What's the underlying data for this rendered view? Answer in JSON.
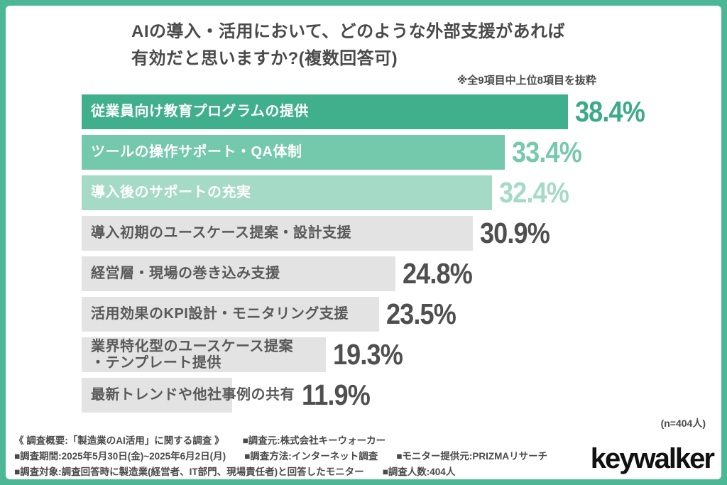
{
  "page": {
    "frame_color": "#4CB795",
    "background": "#ffffff"
  },
  "header": {
    "title_line1": "AIの導入・活用において、どのような外部支援があれば",
    "title_line2": "有効だと思いますか?(複数回答可)",
    "note": "※全9項目中上位8項目を抜粋"
  },
  "chart_data": {
    "type": "bar",
    "orientation": "horizontal",
    "unit": "%",
    "xlim": [
      0,
      40
    ],
    "title": "AIの導入・活用において、どのような外部支援があれば有効だと思いますか?(複数回答可)",
    "categories": [
      "従業員向け教育プログラムの提供",
      "ツールの操作サポート・QA体制",
      "導入後のサポートの充実",
      "導入初期のユースケース提案・設計支援",
      "経営層・現場の巻き込み支援",
      "活用効果のKPI設計・モニタリング支援",
      "業界特化型のユースケース提案\n・テンプレート提供",
      "最新トレンドや他社事例の共有"
    ],
    "values": [
      38.4,
      33.4,
      32.4,
      30.9,
      24.8,
      23.5,
      19.3,
      11.9
    ],
    "value_labels": [
      "38.4%",
      "33.4%",
      "32.4%",
      "30.9%",
      "24.8%",
      "23.5%",
      "19.3%",
      "11.9%"
    ],
    "bar_colors": [
      "#40AF8C",
      "#74C8AC",
      "#A4DAC6",
      "#E3E3E3",
      "#E3E3E3",
      "#E3E3E3",
      "#E3E3E3",
      "#E3E3E3"
    ],
    "label_text_colors": [
      "#ffffff",
      "#ffffff",
      "#ffffff",
      "#595959",
      "#595959",
      "#595959",
      "#595959",
      "#595959"
    ],
    "value_label_colors": [
      "#3BAA88",
      "#76C9AE",
      "#A5DAC7",
      "#4f4f4f",
      "#4f4f4f",
      "#4f4f4f",
      "#4f4f4f",
      "#4f4f4f"
    ],
    "legend": null,
    "grid": false
  },
  "footer": {
    "sample_size": "(n=404人)",
    "survey_lines": [
      [
        "《 調査概要:「製造業のAI活用」に関する調査 》",
        "■調査元:株式会社キーウォーカー"
      ],
      [
        "■調査期間:2025年5月30日(金)~2025年6月2日(月)",
        "■調査方法:インターネット調査",
        "■モニター提供元:PRIZMAリサーチ"
      ],
      [
        "■調査対象:調査回答時に製造業(経営者、IT部門、現場責任者)と回答したモニター",
        "■調査人数:404人"
      ]
    ],
    "logo_text": "keywalker"
  }
}
